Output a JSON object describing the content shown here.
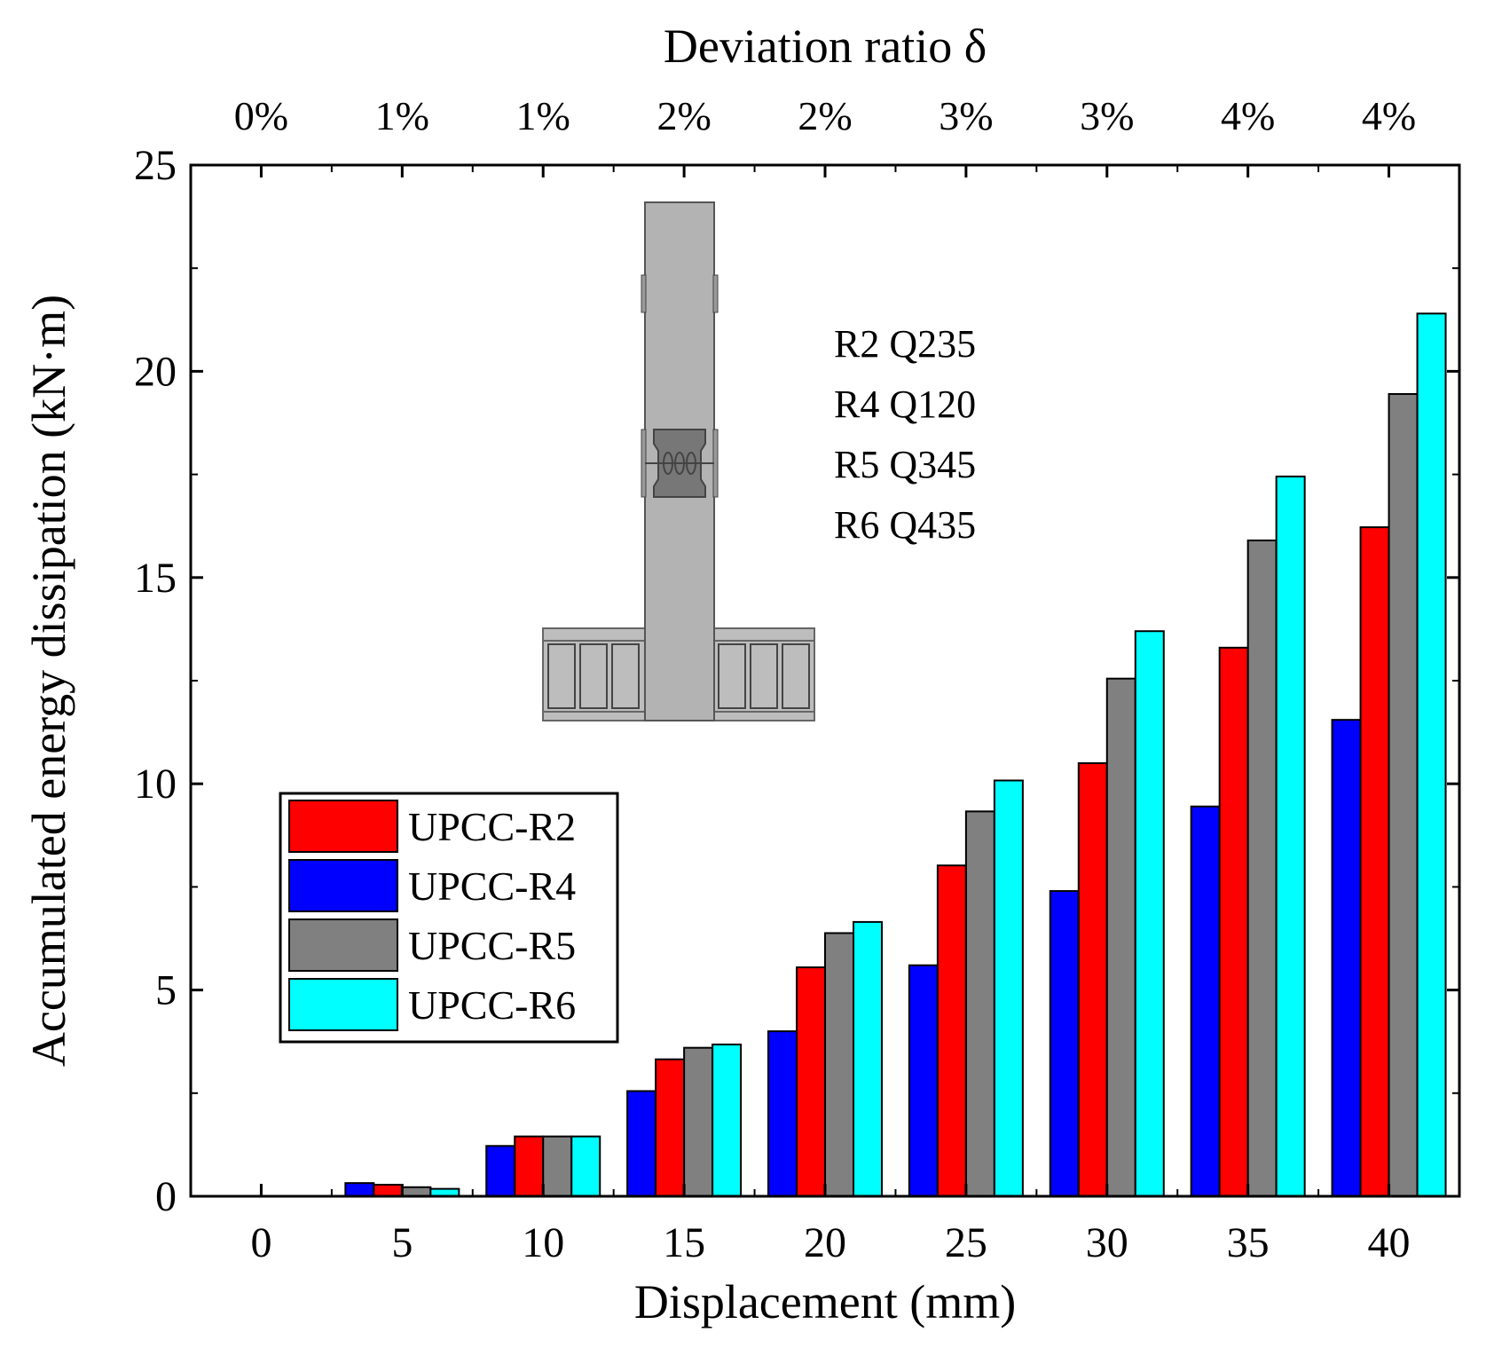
{
  "chart_data": {
    "type": "bar",
    "title": "",
    "xlabel": "Displacement (mm)",
    "ylabel": "Accumulated energy dissipation (kN·m)",
    "top_xlabel": "Deviation ratio δ",
    "categories": [
      "0",
      "5",
      "10",
      "15",
      "20",
      "25",
      "30",
      "35",
      "40"
    ],
    "top_categories": [
      "0%",
      "1%",
      "1%",
      "2%",
      "2%",
      "3%",
      "3%",
      "4%",
      "4%"
    ],
    "ylim": [
      0,
      25
    ],
    "yticks": [
      "0",
      "5",
      "10",
      "15",
      "20",
      "25"
    ],
    "ytick_values": [
      0,
      5,
      10,
      15,
      20,
      25
    ],
    "grid": false,
    "legend_position": "center-left",
    "series": [
      {
        "name": "UPCC-R4",
        "color": "#0000ff",
        "values": [
          0,
          0.32,
          1.22,
          2.55,
          4.0,
          5.6,
          7.4,
          9.45,
          11.55
        ]
      },
      {
        "name": "UPCC-R2",
        "color": "#ff0000",
        "values": [
          0,
          0.28,
          1.45,
          3.32,
          5.55,
          8.02,
          10.5,
          13.3,
          16.22
        ]
      },
      {
        "name": "UPCC-R5",
        "color": "#808080",
        "values": [
          0,
          0.22,
          1.45,
          3.6,
          6.38,
          9.33,
          12.55,
          15.9,
          19.45
        ]
      },
      {
        "name": "UPCC-R6",
        "color": "#00ffff",
        "values": [
          0,
          0.18,
          1.45,
          3.68,
          6.65,
          10.08,
          13.7,
          17.45,
          21.4
        ]
      }
    ],
    "legend_order": [
      "UPCC-R2",
      "UPCC-R4",
      "UPCC-R5",
      "UPCC-R6"
    ],
    "annotations": [
      "R2 Q235",
      "R4 Q120",
      "R5 Q345",
      "R6 Q435"
    ]
  }
}
